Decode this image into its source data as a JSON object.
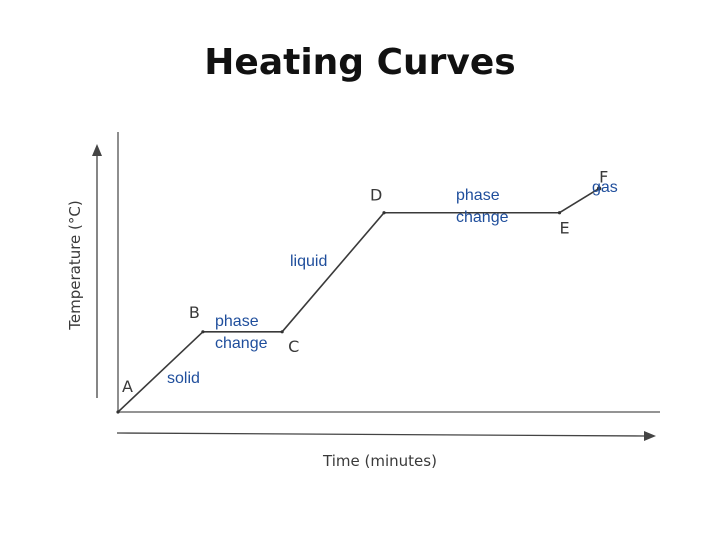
{
  "slide": {
    "title": "Heating Curves"
  },
  "chart_data": {
    "type": "line",
    "title": "Heating Curves",
    "xlabel": "Time (minutes)",
    "ylabel": "Temperature (°C)",
    "grid": false,
    "series": [
      {
        "points": [
          {
            "label": "A",
            "x": 0,
            "y": 0
          },
          {
            "label": "B",
            "x": 1.5,
            "y": 3.3
          },
          {
            "label": "C",
            "x": 2.9,
            "y": 3.3
          },
          {
            "label": "D",
            "x": 4.7,
            "y": 8.2
          },
          {
            "label": "E",
            "x": 7.8,
            "y": 8.2
          },
          {
            "label": "F",
            "x": 8.5,
            "y": 9.2
          }
        ]
      }
    ],
    "annotations": [
      {
        "lines": [
          "solid"
        ]
      },
      {
        "lines": [
          "phase",
          "change"
        ]
      },
      {
        "lines": [
          "liquid"
        ]
      },
      {
        "lines": [
          "phase",
          "change"
        ]
      },
      {
        "lines": [
          "gas"
        ]
      }
    ]
  }
}
